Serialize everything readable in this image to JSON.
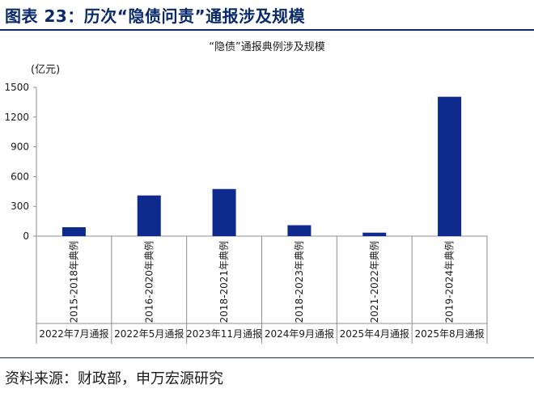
{
  "figure": {
    "title": "图表 23：历次“隐债问责”通报涉及规模",
    "source": "资料来源：财政部，申万宏源研究"
  },
  "chart_data": {
    "type": "bar",
    "title": "“隐债”通报典例涉及规模",
    "unit_label": "(亿元)",
    "categories": [
      "2015-2018年典例",
      "2016-2020年典例",
      "2018-2021年典例",
      "2018-2023年典例",
      "2021-2022年典例",
      "2019-2024年典例"
    ],
    "groups": [
      "2022年7月通报",
      "2022年5月通报",
      "2023年11月通报",
      "2024年9月通报",
      "2025年4月通报",
      "2025年8月通报"
    ],
    "values": [
      90,
      410,
      475,
      110,
      35,
      1405
    ],
    "ylim": [
      0,
      1500
    ],
    "yticks": [
      0,
      300,
      600,
      900,
      1200,
      1500
    ],
    "bar_color": "#0d2a8c",
    "grid": false
  }
}
